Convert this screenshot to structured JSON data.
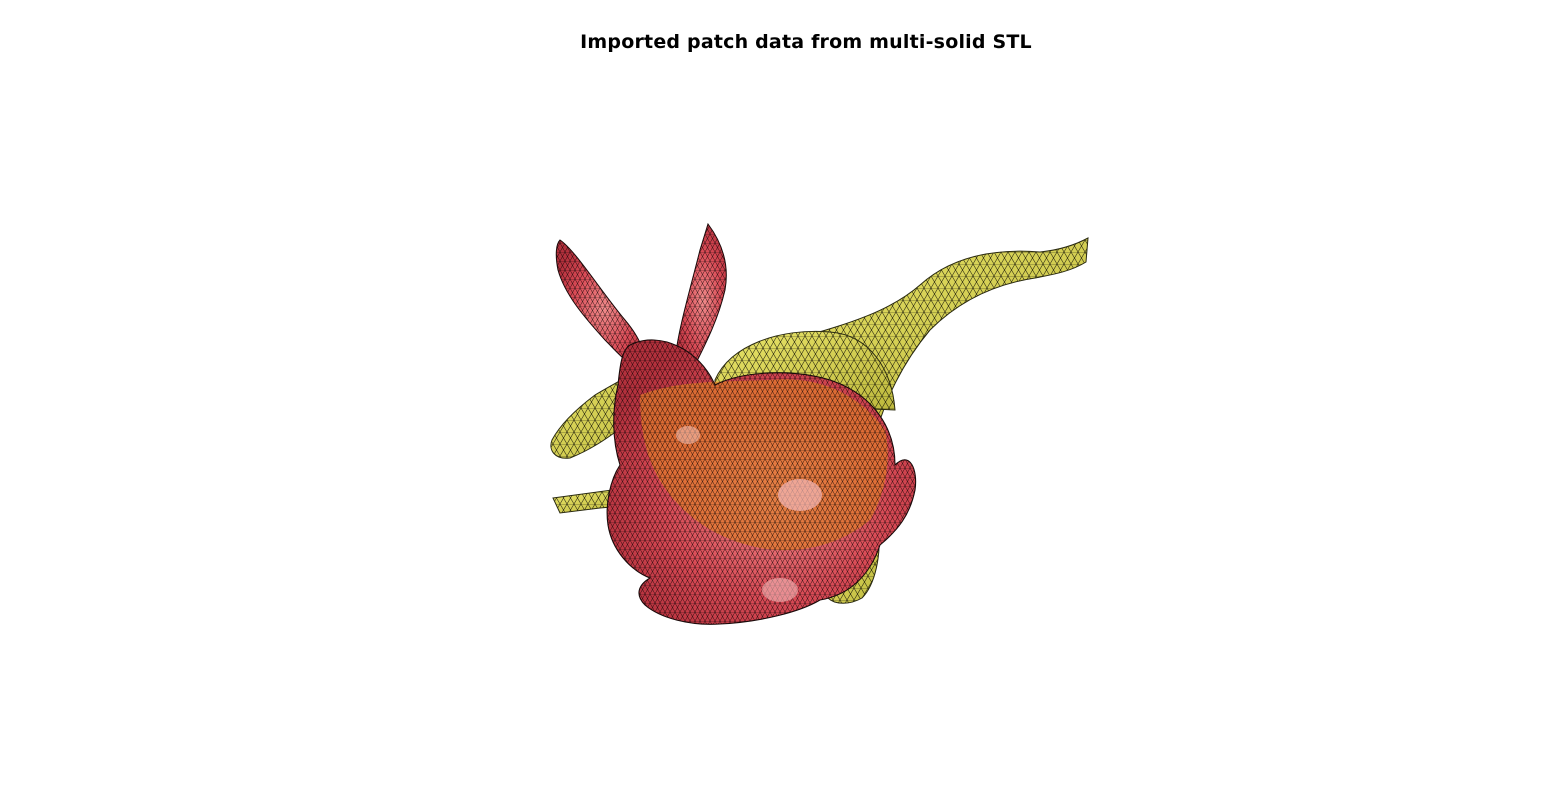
{
  "figure": {
    "title": "Imported patch data from multi-solid STL"
  },
  "solids": [
    {
      "name": "bunny",
      "face_color": "#d94a55",
      "edge_color": "#000000",
      "face_alpha": 0.75
    },
    {
      "name": "stegosaurus",
      "face_color": "#e2df56",
      "edge_color": "#000000",
      "face_alpha": 0.75
    }
  ],
  "colors": {
    "background": "#ffffff",
    "overlap": "#e07a2a",
    "highlight": "#f4b8b8"
  }
}
